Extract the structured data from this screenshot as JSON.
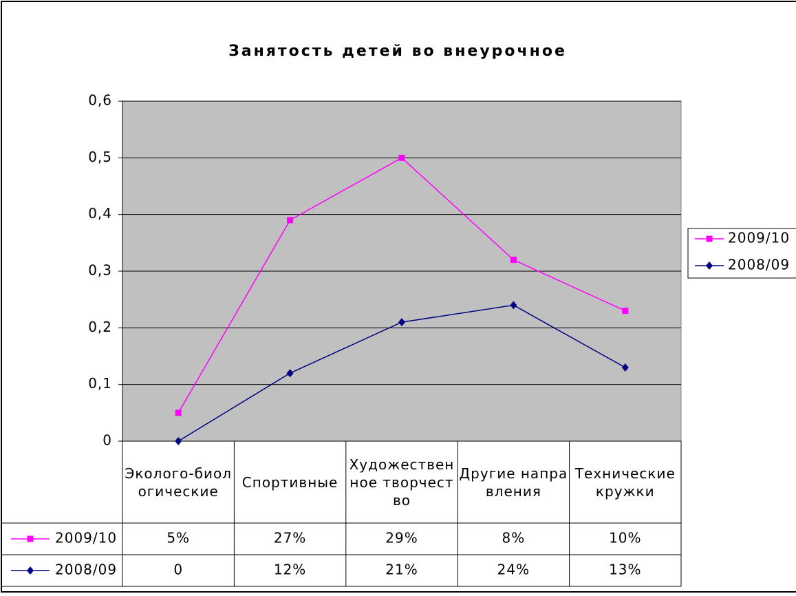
{
  "chart_data": {
    "type": "line",
    "title": "Занятость детей во внеурочное",
    "categories": [
      "Эколого-биологические",
      "Спортивные",
      "Художественное творчество",
      "Другие направления",
      "Технические кружки"
    ],
    "series": [
      {
        "name": "2009/10",
        "color": "#ff00ff",
        "marker": "square",
        "values": [
          0.05,
          0.39,
          0.5,
          0.32,
          0.23
        ]
      },
      {
        "name": "2008/09",
        "color": "#000080",
        "marker": "diamond",
        "values": [
          0,
          0.12,
          0.21,
          0.24,
          0.13
        ]
      }
    ],
    "ylim": [
      0,
      0.6
    ],
    "yticks": [
      0,
      {
        "value": 0.1,
        "label": "0,1"
      },
      {
        "value": 0.2,
        "label": "0,2"
      },
      {
        "value": 0.3,
        "label": "0,3"
      },
      {
        "value": 0.4,
        "label": "0,4"
      },
      {
        "value": 0.5,
        "label": "0,5"
      },
      {
        "value": 0.6,
        "label": "0,6"
      }
    ],
    "grid": true,
    "legend": "right",
    "data_table": {
      "rows": [
        [
          "5%",
          "27%",
          "29%",
          "8%",
          "10%"
        ],
        [
          "0",
          "12%",
          "21%",
          "24%",
          "13%"
        ]
      ]
    }
  }
}
